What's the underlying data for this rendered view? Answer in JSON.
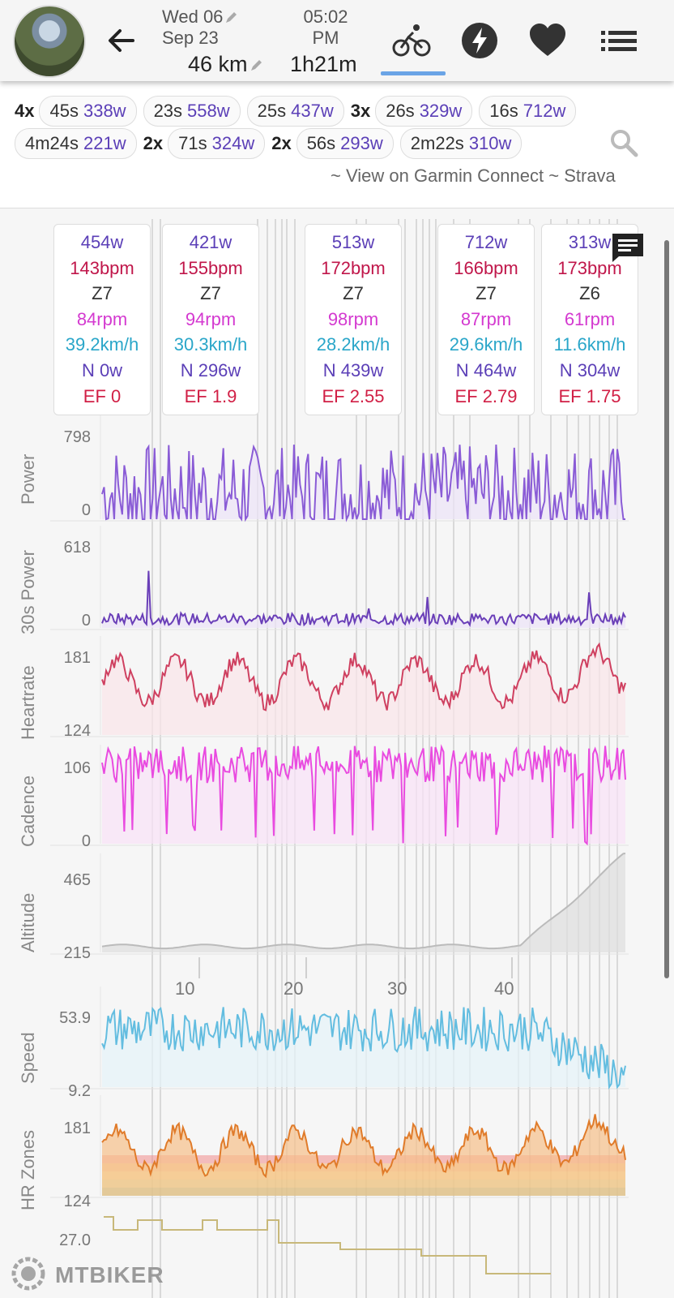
{
  "header": {
    "date_line1": "Wed 06",
    "date_line2": "Sep 23",
    "time_line1": "05:02",
    "time_line2": "PM",
    "distance": "46 km",
    "duration": "1h21m"
  },
  "icons": {
    "back": "arrow-left-icon",
    "activity": "bicycle-icon",
    "power": "lightning-icon",
    "heart": "heart-icon",
    "menu": "list-icon",
    "search": "search-icon",
    "comment": "comment-icon"
  },
  "interval_chips": {
    "row1": [
      {
        "mult": "4x",
        "time": "45s",
        "power": "338w"
      },
      {
        "mult": "",
        "time": "23s",
        "power": "558w"
      },
      {
        "mult": "",
        "time": "25s",
        "power": "437w"
      },
      {
        "mult": "3x",
        "time": "26s",
        "power": "329w"
      },
      {
        "mult": "",
        "time": "16s",
        "power": "712w"
      }
    ],
    "row2": [
      {
        "mult": "",
        "time": "4m24s",
        "power": "221w"
      },
      {
        "mult": "2x",
        "time": "71s",
        "power": "324w"
      },
      {
        "mult": "2x",
        "time": "56s",
        "power": "293w"
      },
      {
        "mult": "",
        "time": "2m22s",
        "power": "310w"
      }
    ]
  },
  "links": {
    "garmin": "~ View on Garmin Connect",
    "strava": "~ Strava"
  },
  "stat_cards": [
    {
      "power": "454w",
      "hr": "143bpm",
      "zone": "Z7",
      "cadence": "84rpm",
      "speed": "39.2km/h",
      "np": "N 0w",
      "ef": "EF 0"
    },
    {
      "power": "421w",
      "hr": "155bpm",
      "zone": "Z7",
      "cadence": "94rpm",
      "speed": "30.3km/h",
      "np": "N 296w",
      "ef": "EF 1.9"
    },
    {
      "power": "513w",
      "hr": "172bpm",
      "zone": "Z7",
      "cadence": "98rpm",
      "speed": "28.2km/h",
      "np": "N 439w",
      "ef": "EF 2.55"
    },
    {
      "power": "712w",
      "hr": "166bpm",
      "zone": "Z7",
      "cadence": "87rpm",
      "speed": "29.6km/h",
      "np": "N 464w",
      "ef": "EF 2.79"
    },
    {
      "power": "313w",
      "hr": "173bpm",
      "zone": "Z6",
      "cadence": "61rpm",
      "speed": "11.6km/h",
      "np": "N 304w",
      "ef": "EF 1.75"
    }
  ],
  "charts": [
    {
      "name": "Power",
      "ymax": "798",
      "ymin": "0",
      "color": "#8a5cd6",
      "fill": "#ece4f8",
      "min": 0,
      "max": 798,
      "base": 200,
      "amp": 380
    },
    {
      "name": "30s Power",
      "ymax": "618",
      "ymin": "0",
      "color": "#6a3fb8",
      "fill": "#ece4f8",
      "min": 0,
      "max": 618,
      "base": 60,
      "amp": 120
    },
    {
      "name": "Heartrate",
      "ymax": "181",
      "ymin": "124",
      "color": "#cf4060",
      "fill": "#fbe6ea",
      "min": 124,
      "max": 181,
      "base": 155,
      "amp": 20
    },
    {
      "name": "Cadence",
      "ymax": "106",
      "ymin": "0",
      "color": "#e94be0",
      "fill": "#f9e3f8",
      "min": 0,
      "max": 106,
      "base": 85,
      "amp": 20
    },
    {
      "name": "Altitude",
      "ymax": "465",
      "ymin": "215",
      "color": "#bbbbbb",
      "fill": "#dedede",
      "min": 215,
      "max": 465,
      "base": 230,
      "amp": 10
    },
    {
      "name": "Speed",
      "ymax": "53.9",
      "ymin": "9.2",
      "color": "#63bde0",
      "fill": "#e6f3fa",
      "min": 9.2,
      "max": 53.9,
      "base": 35,
      "amp": 10
    },
    {
      "name": "HR Zones",
      "ymax": "181",
      "ymin": "124",
      "color": "#e07b2a",
      "fill": "#f6c08a",
      "min": 124,
      "max": 181,
      "base": 150,
      "amp": 18
    }
  ],
  "extra_chart": {
    "ymax": "27.0"
  },
  "x_axis": {
    "ticks": [
      "10",
      "20",
      "30",
      "40"
    ]
  },
  "watermark": "MTBIKER"
}
